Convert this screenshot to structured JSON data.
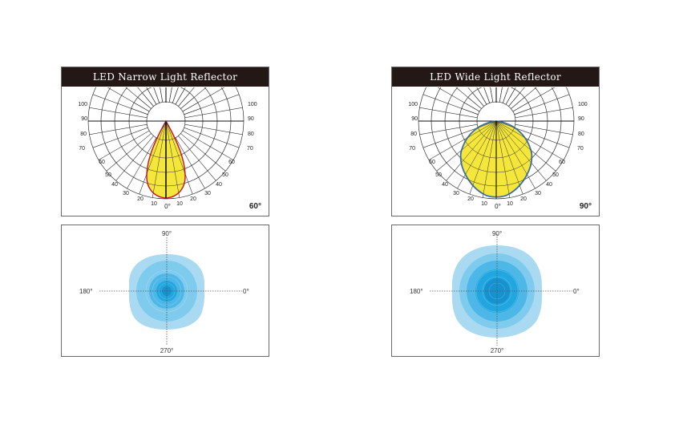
{
  "left": {
    "title": "LED Narrow Light Reflector",
    "beam_angle": "60°",
    "polar_scale_labels": [
      "100",
      "90",
      "80",
      "70",
      "60",
      "50",
      "40",
      "30",
      "20",
      "10"
    ],
    "zero_label": "0°",
    "fill_color": "#f4e63a",
    "outline_color": "#c8102e",
    "spot": {
      "top": "90°",
      "left": "180°",
      "right": "0°",
      "bottom": "270°"
    }
  },
  "right": {
    "title": "LED Wide Light Reflector",
    "beam_angle": "90°",
    "polar_scale_labels": [
      "100",
      "90",
      "80",
      "70",
      "60",
      "50",
      "40",
      "30",
      "20",
      "10"
    ],
    "zero_label": "0°",
    "fill_color": "#f4e63a",
    "outline_color": "#3b6fa8",
    "spot": {
      "top": "90°",
      "left": "180°",
      "right": "0°",
      "bottom": "270°"
    }
  },
  "spot_colors": [
    "#a9daf2",
    "#7fcbee",
    "#4db8e8",
    "#22a6df",
    "#1592cf"
  ]
}
